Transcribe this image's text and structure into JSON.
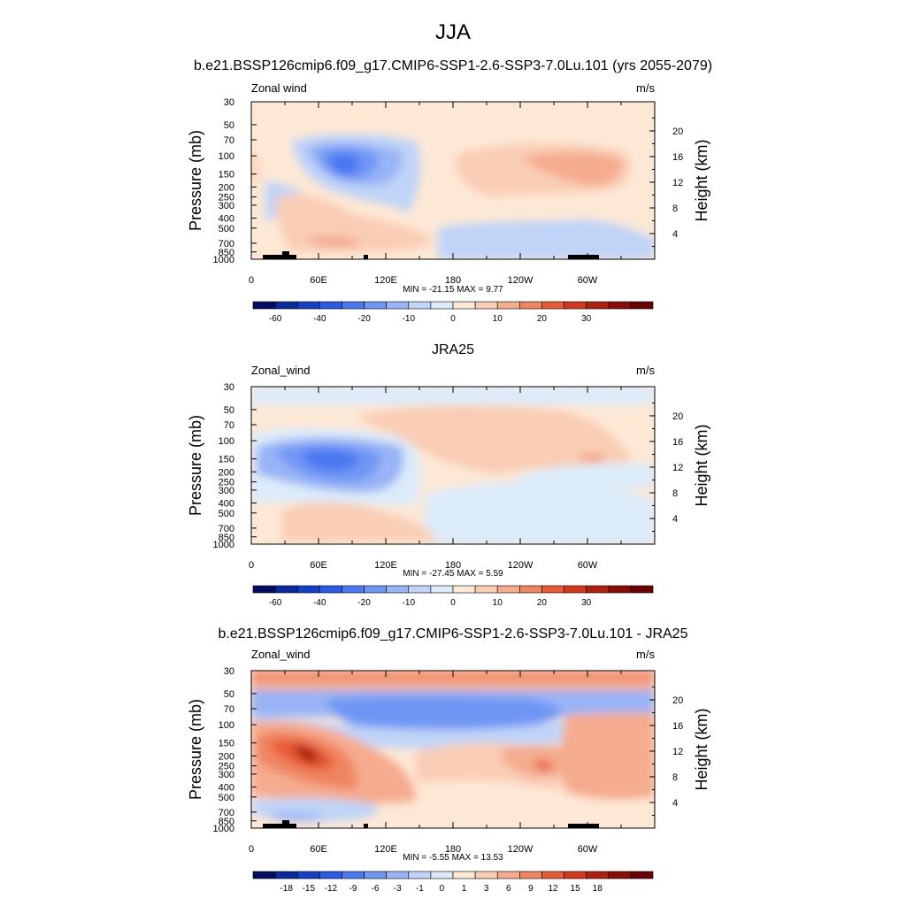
{
  "figure": {
    "title": "JJA"
  },
  "chart_data": [
    {
      "type": "heatmap",
      "title": "b.e21.BSSP126cmip6.f09_g17.CMIP6-SSP1-2.6-SSP3-7.0Lu.101 (yrs 2055-2079)",
      "left_label": "Zonal wind",
      "units_label": "m/s",
      "ylabel": "Pressure (mb)",
      "ylabel_right": "Height (km)",
      "x_ticks": [
        "0",
        "60E",
        "120E",
        "180",
        "120W",
        "60W"
      ],
      "x_tick_values": [
        0,
        60,
        120,
        180,
        240,
        300
      ],
      "xlim": [
        0,
        360
      ],
      "y_ticks": [
        "30",
        "50",
        "70",
        "100",
        "150",
        "200",
        "250",
        "300",
        "400",
        "500",
        "700",
        "850",
        "1000"
      ],
      "y_tick_values": [
        30,
        50,
        70,
        100,
        150,
        200,
        250,
        300,
        400,
        500,
        700,
        850,
        1000
      ],
      "ylim": [
        1000,
        30
      ],
      "y_scale": "log",
      "height_ticks": [
        "20",
        "16",
        "12",
        "8",
        "4"
      ],
      "height_tick_values": [
        20,
        16,
        12,
        8,
        4
      ],
      "min_max_text": "MIN = -21.15  MAX =   9.77",
      "colorbar_levels": [
        "-60",
        "-40",
        "-20",
        "-10",
        "0",
        "10",
        "20",
        "30"
      ],
      "colorbar_colors": [
        "#040c64",
        "#0a2aa0",
        "#1440c8",
        "#2a5ae6",
        "#4a78f0",
        "#7096f4",
        "#98b4f6",
        "#c0d4f8",
        "#dcebfa",
        "#fde8d6",
        "#f9cdb4",
        "#f5ab8e",
        "#ef8460",
        "#e85a34",
        "#d6381c",
        "#b02010",
        "#8a0c06",
        "#6a0000"
      ],
      "features": [
        {
          "kind": "jet",
          "sign": "negative",
          "lon": 75,
          "p": 120,
          "peak": -21.15
        },
        {
          "kind": "region",
          "sign": "positive",
          "lon": 250,
          "p": 120,
          "value": 9.77
        }
      ]
    },
    {
      "type": "heatmap",
      "title": "JRA25",
      "left_label": "Zonal_wind",
      "units_label": "m/s",
      "ylabel": "Pressure (mb)",
      "ylabel_right": "Height (km)",
      "x_ticks": [
        "0",
        "60E",
        "120E",
        "180",
        "120W",
        "60W"
      ],
      "x_tick_values": [
        0,
        60,
        120,
        180,
        240,
        300
      ],
      "xlim": [
        0,
        360
      ],
      "y_ticks": [
        "30",
        "50",
        "70",
        "100",
        "150",
        "200",
        "250",
        "300",
        "400",
        "500",
        "700",
        "850",
        "1000"
      ],
      "y_tick_values": [
        30,
        50,
        70,
        100,
        150,
        200,
        250,
        300,
        400,
        500,
        700,
        850,
        1000
      ],
      "ylim": [
        1000,
        30
      ],
      "y_scale": "log",
      "height_ticks": [
        "20",
        "16",
        "12",
        "8",
        "4"
      ],
      "height_tick_values": [
        20,
        16,
        12,
        8,
        4
      ],
      "min_max_text": "MIN = -27.45  MAX =   5.59",
      "colorbar_levels": [
        "-60",
        "-40",
        "-20",
        "-10",
        "0",
        "10",
        "20",
        "30"
      ],
      "colorbar_colors": [
        "#040c64",
        "#0a2aa0",
        "#1440c8",
        "#2a5ae6",
        "#4a78f0",
        "#7096f4",
        "#98b4f6",
        "#c0d4f8",
        "#dcebfa",
        "#fde8d6",
        "#f9cdb4",
        "#f5ab8e",
        "#ef8460",
        "#e85a34",
        "#d6381c",
        "#b02010",
        "#8a0c06",
        "#6a0000"
      ],
      "features": [
        {
          "kind": "jet",
          "sign": "negative",
          "lon": 70,
          "p": 150,
          "peak": -27.45
        },
        {
          "kind": "region",
          "sign": "positive",
          "lon": 300,
          "p": 150,
          "value": 5.59
        }
      ]
    },
    {
      "type": "heatmap",
      "title": "b.e21.BSSP126cmip6.f09_g17.CMIP6-SSP1-2.6-SSP3-7.0Lu.101 - JRA25",
      "left_label": "Zonal_wind",
      "units_label": "m/s",
      "ylabel": "Pressure (mb)",
      "ylabel_right": "Height (km)",
      "x_ticks": [
        "0",
        "60E",
        "120E",
        "180",
        "120W",
        "60W"
      ],
      "x_tick_values": [
        0,
        60,
        120,
        180,
        240,
        300
      ],
      "xlim": [
        0,
        360
      ],
      "y_ticks": [
        "30",
        "50",
        "70",
        "100",
        "150",
        "200",
        "250",
        "300",
        "400",
        "500",
        "700",
        "850",
        "1000"
      ],
      "y_tick_values": [
        30,
        50,
        70,
        100,
        150,
        200,
        250,
        300,
        400,
        500,
        700,
        850,
        1000
      ],
      "ylim": [
        1000,
        30
      ],
      "y_scale": "log",
      "height_ticks": [
        "20",
        "16",
        "12",
        "8",
        "4"
      ],
      "height_tick_values": [
        20,
        16,
        12,
        8,
        4
      ],
      "min_max_text": "MIN = -5.55  MAX =  13.53",
      "colorbar_levels": [
        "-18",
        "-15",
        "-12",
        "-9",
        "-6",
        "-3",
        "-1",
        "0",
        "1",
        "3",
        "6",
        "9",
        "12",
        "15",
        "18"
      ],
      "colorbar_colors": [
        "#040c64",
        "#0a2aa0",
        "#1440c8",
        "#2a5ae6",
        "#4a78f0",
        "#7096f4",
        "#98b4f6",
        "#c0d4f8",
        "#dcebfa",
        "#fde8d6",
        "#f9cdb4",
        "#f5ab8e",
        "#ef8460",
        "#e85a34",
        "#d6381c",
        "#b02010",
        "#8a0c06",
        "#6a0000"
      ],
      "features": [
        {
          "kind": "jet",
          "sign": "positive",
          "lon": 50,
          "p": 170,
          "peak": 13.53
        },
        {
          "kind": "band",
          "sign": "negative",
          "p": 70,
          "value": -5.55
        }
      ]
    }
  ]
}
